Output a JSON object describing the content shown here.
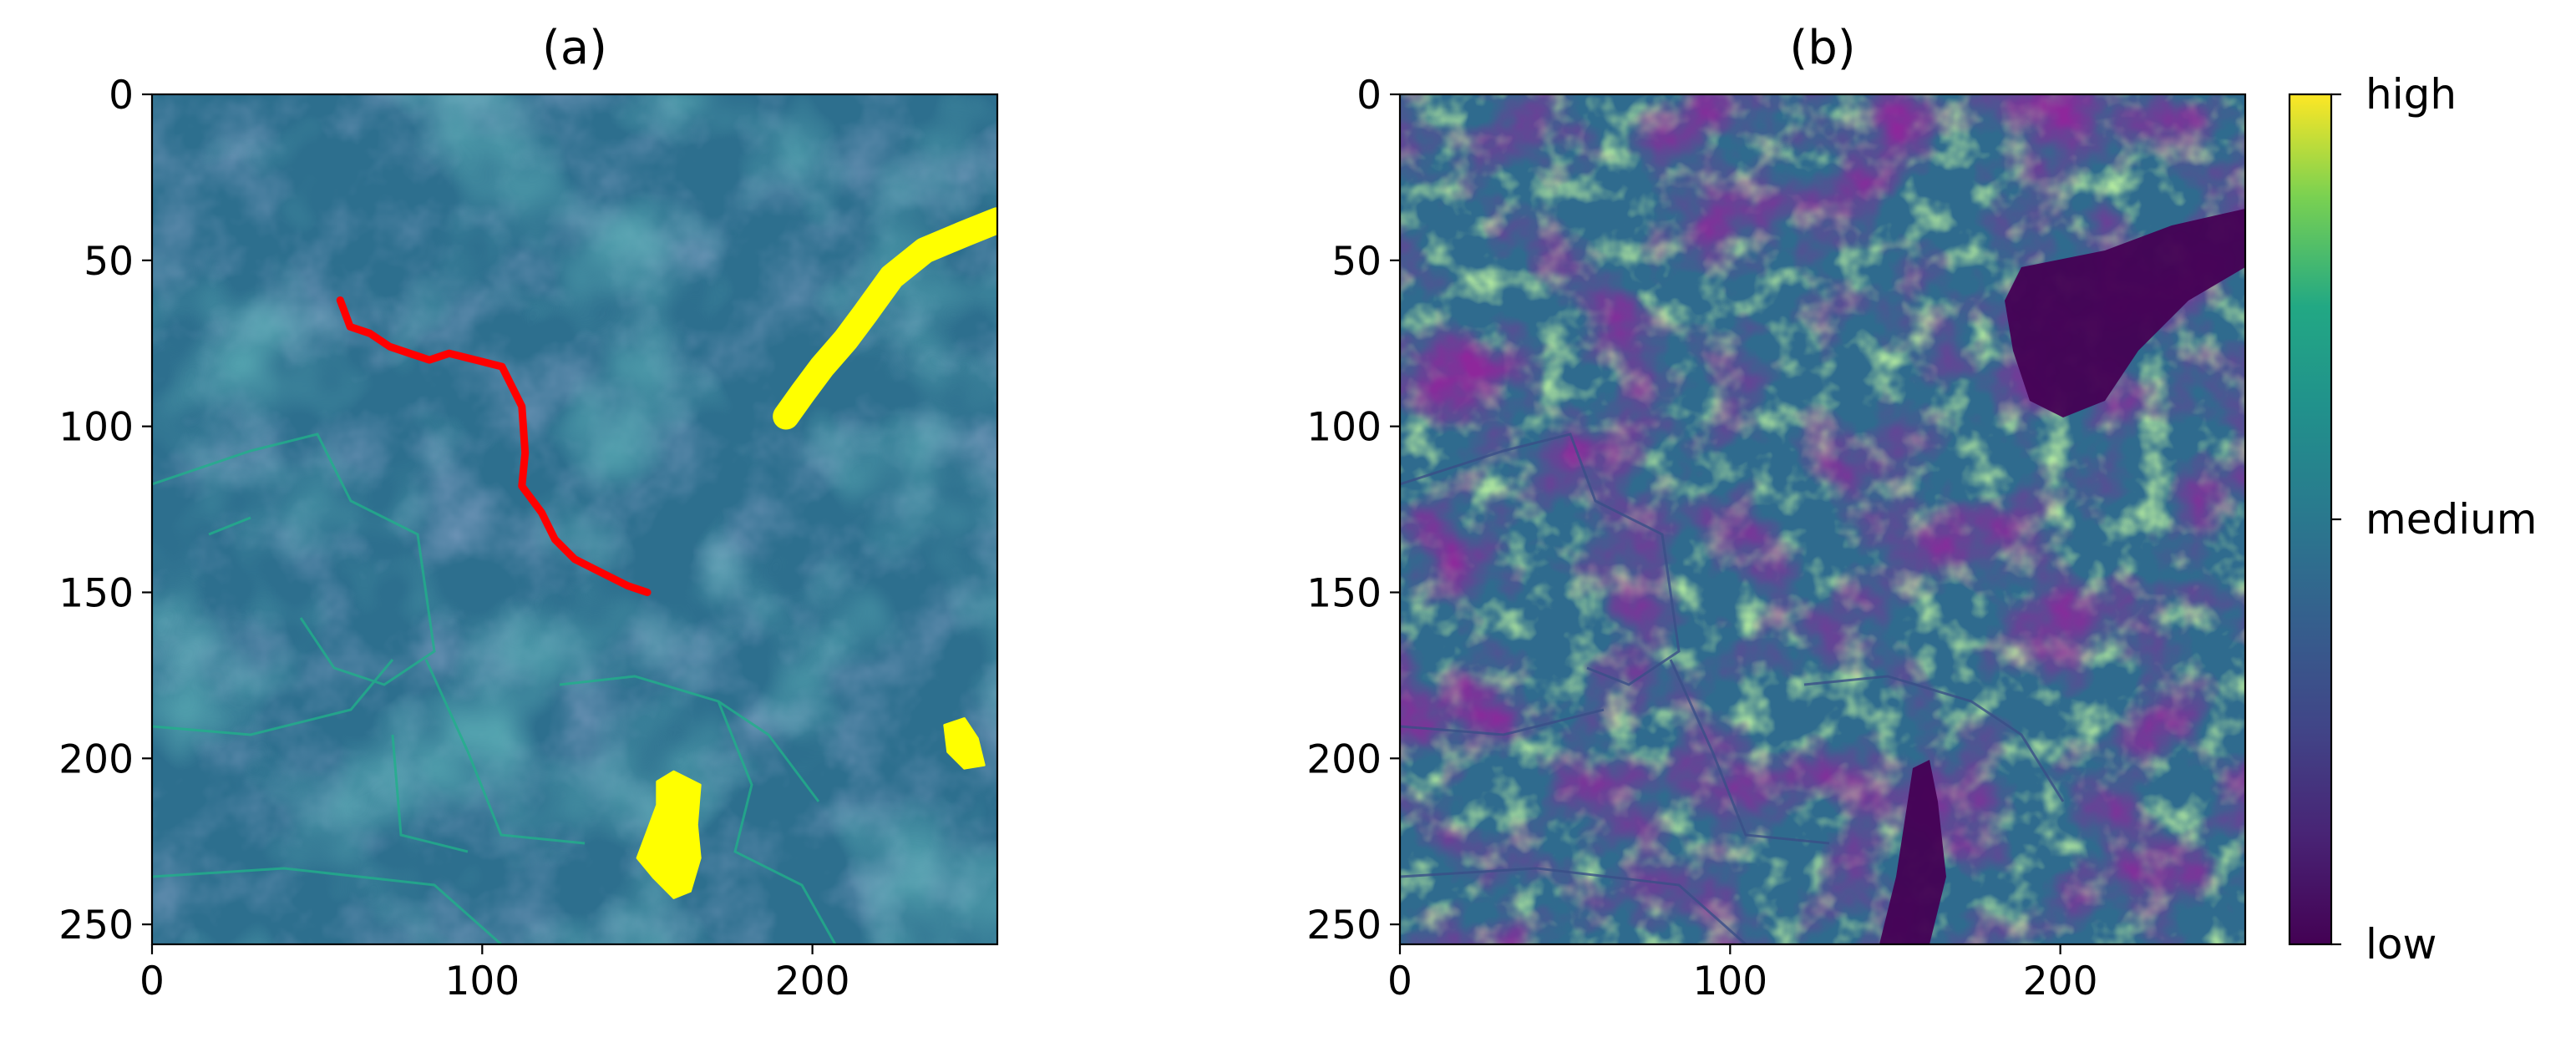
{
  "chart_data": [
    {
      "type": "heatmap",
      "title": "(a)",
      "xlabel": "",
      "ylabel": "",
      "xlim": [
        0,
        256
      ],
      "ylim": [
        256,
        0
      ],
      "xticks": [
        0,
        100,
        200
      ],
      "yticks": [
        0,
        50,
        100,
        150,
        200,
        250
      ],
      "background_colormap": "viridis",
      "overlays": [
        {
          "color": "#ff0000",
          "shape": "path",
          "points": [
            [
              57,
              62
            ],
            [
              60,
              70
            ],
            [
              66,
              72
            ],
            [
              72,
              76
            ],
            [
              78,
              78
            ],
            [
              84,
              80
            ],
            [
              90,
              78
            ],
            [
              98,
              80
            ],
            [
              106,
              82
            ],
            [
              112,
              94
            ],
            [
              113,
              108
            ],
            [
              112,
              118
            ],
            [
              118,
              126
            ],
            [
              122,
              134
            ],
            [
              128,
              140
            ],
            [
              136,
              144
            ],
            [
              144,
              148
            ],
            [
              150,
              150
            ]
          ]
        },
        {
          "color": "#ffff00",
          "shape": "band",
          "points": [
            [
              192,
              97
            ],
            [
              197,
              90
            ],
            [
              203,
              82
            ],
            [
              210,
              74
            ],
            [
              216,
              66
            ],
            [
              224,
              55
            ],
            [
              234,
              47
            ],
            [
              246,
              42
            ],
            [
              256,
              38
            ]
          ],
          "width": 8
        },
        {
          "color": "#ffff00",
          "shape": "blob",
          "points": [
            [
              153,
              207
            ],
            [
              158,
              204
            ],
            [
              166,
              208
            ],
            [
              165,
              220
            ],
            [
              166,
              230
            ],
            [
              163,
              240
            ],
            [
              158,
              242
            ],
            [
              152,
              236
            ],
            [
              147,
              230
            ],
            [
              150,
              222
            ],
            [
              153,
              214
            ]
          ]
        },
        {
          "color": "#ffff00",
          "shape": "blob",
          "points": [
            [
              240,
              190
            ],
            [
              246,
              188
            ],
            [
              250,
              194
            ],
            [
              252,
              202
            ],
            [
              246,
              203
            ],
            [
              241,
              198
            ]
          ]
        }
      ]
    },
    {
      "type": "heatmap",
      "title": "(b)",
      "xlabel": "",
      "ylabel": "",
      "xlim": [
        0,
        256
      ],
      "ylim": [
        256,
        0
      ],
      "xticks": [
        0,
        100,
        200
      ],
      "yticks": [
        0,
        50,
        100,
        150,
        200,
        250
      ],
      "colormap": "viridis",
      "colorbar": {
        "labels": [
          "high",
          "medium",
          "low"
        ]
      }
    }
  ]
}
